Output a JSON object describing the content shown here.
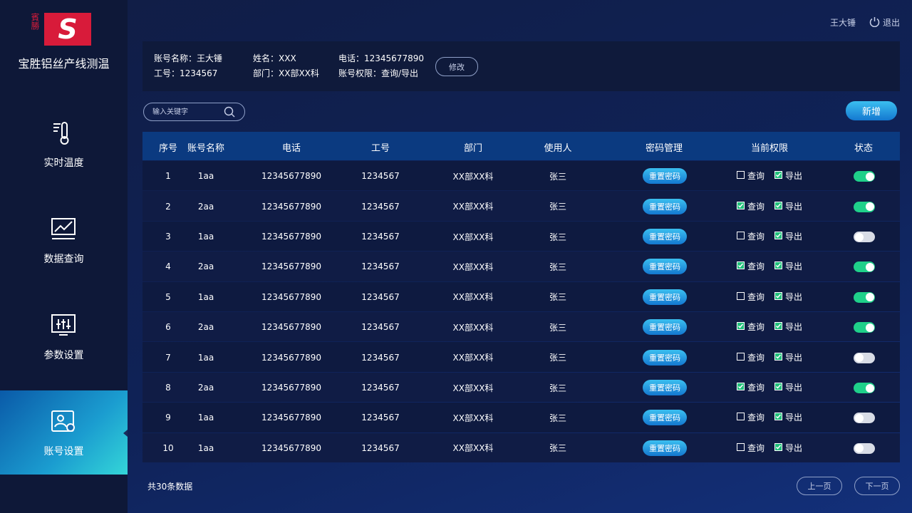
{
  "logo": {
    "side": "賓勝",
    "mark": "S"
  },
  "app_title": "宝胜铝丝产线测温",
  "nav": {
    "items": [
      "实时温度",
      "数据查询",
      "参数设置",
      "账号设置"
    ],
    "active": 3
  },
  "header": {
    "user": "王大锤",
    "logout": "退出"
  },
  "profile": {
    "fields": [
      "账号名称：王大锤",
      "工号：1234567",
      "姓名：XXX",
      "部门：XX部XX科",
      "电话：12345677890",
      "账号权限：查询/导出"
    ],
    "edit": "修改"
  },
  "search": {
    "placeholder": "输入关键字"
  },
  "add": "新增",
  "table": {
    "columns": [
      "序号",
      "账号名称",
      "电话",
      "工号",
      "部门",
      "使用人",
      "密码管理",
      "当前权限",
      "状态"
    ],
    "reset": "重置密码",
    "perm_labels": [
      "查询",
      "导出"
    ],
    "rows": [
      {
        "cells": [
          "1",
          "1aa",
          "12345677890",
          "1234567",
          "XX部XX科",
          "张三"
        ],
        "query": false,
        "export": true,
        "enabled": true
      },
      {
        "cells": [
          "2",
          "2aa",
          "12345677890",
          "1234567",
          "XX部XX科",
          "张三"
        ],
        "query": true,
        "export": true,
        "enabled": true
      },
      {
        "cells": [
          "3",
          "1aa",
          "12345677890",
          "1234567",
          "XX部XX科",
          "张三"
        ],
        "query": false,
        "export": true,
        "enabled": false
      },
      {
        "cells": [
          "4",
          "2aa",
          "12345677890",
          "1234567",
          "XX部XX科",
          "张三"
        ],
        "query": true,
        "export": true,
        "enabled": true
      },
      {
        "cells": [
          "5",
          "1aa",
          "12345677890",
          "1234567",
          "XX部XX科",
          "张三"
        ],
        "query": false,
        "export": true,
        "enabled": true
      },
      {
        "cells": [
          "6",
          "2aa",
          "12345677890",
          "1234567",
          "XX部XX科",
          "张三"
        ],
        "query": true,
        "export": true,
        "enabled": true
      },
      {
        "cells": [
          "7",
          "1aa",
          "12345677890",
          "1234567",
          "XX部XX科",
          "张三"
        ],
        "query": false,
        "export": true,
        "enabled": false
      },
      {
        "cells": [
          "8",
          "2aa",
          "12345677890",
          "1234567",
          "XX部XX科",
          "张三"
        ],
        "query": true,
        "export": true,
        "enabled": true
      },
      {
        "cells": [
          "9",
          "1aa",
          "12345677890",
          "1234567",
          "XX部XX科",
          "张三"
        ],
        "query": false,
        "export": true,
        "enabled": false
      },
      {
        "cells": [
          "10",
          "1aa",
          "12345677890",
          "1234567",
          "XX部XX科",
          "张三"
        ],
        "query": false,
        "export": true,
        "enabled": false
      }
    ]
  },
  "footer": {
    "total": "共30条数据",
    "prev": "上一页",
    "next": "下一页"
  }
}
